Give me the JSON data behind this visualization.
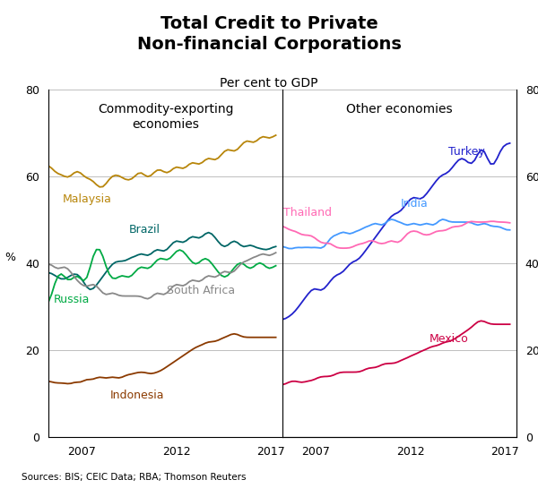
{
  "title_line1": "Total Credit to Private",
  "title_line2": "Non-financial Corporations",
  "subtitle": "Per cent to GDP",
  "left_panel_title": "Commodity-exporting\neconomies",
  "right_panel_title": "Other economies",
  "source": "Sources: BIS; CEIC Data; RBA; Thomson Reuters",
  "ylim": [
    0,
    80
  ],
  "yticks": [
    0,
    20,
    40,
    60,
    80
  ],
  "year_start": 2005.0,
  "year_end": 2017.5,
  "xticks_left": [
    2007,
    2012,
    2017
  ],
  "xticks_right": [
    2007,
    2012,
    2017
  ],
  "malaysia_color": "#B8860B",
  "brazil_color": "#006666",
  "russia_color": "#00AA44",
  "south_africa_color": "#888888",
  "indonesia_color": "#8B3A00",
  "turkey_color": "#2222CC",
  "india_color": "#4499FF",
  "thailand_color": "#FF69B4",
  "mexico_color": "#CC0044",
  "malaysia": [
    63,
    62,
    61,
    60,
    61,
    60,
    59,
    60,
    61,
    62,
    61,
    60,
    59,
    60,
    59,
    58,
    57,
    57,
    58,
    60,
    60,
    61,
    60,
    60,
    59,
    59,
    59,
    60,
    61,
    62,
    60,
    59,
    60,
    61,
    62,
    62,
    61,
    60,
    61,
    62,
    63,
    62,
    61,
    62,
    63,
    64,
    63,
    62,
    63,
    64,
    65,
    64,
    63,
    64,
    65,
    66,
    67,
    66,
    65,
    66,
    67,
    68,
    69,
    68,
    67,
    68,
    69,
    70,
    69,
    68,
    69,
    70
  ],
  "brazil": [
    38,
    38,
    37,
    37,
    36,
    36,
    37,
    37,
    38,
    38,
    37,
    36,
    34,
    33,
    34,
    35,
    36,
    37,
    38,
    39,
    40,
    41,
    40,
    41,
    40,
    41,
    42,
    41,
    42,
    43,
    42,
    41,
    42,
    43,
    44,
    43,
    42,
    43,
    44,
    45,
    46,
    45,
    44,
    45,
    46,
    47,
    46,
    45,
    46,
    47,
    48,
    47,
    46,
    45,
    44,
    43,
    44,
    45,
    46,
    45,
    44,
    43,
    44,
    45,
    44,
    43,
    44,
    43,
    43,
    43,
    44,
    44
  ],
  "russia": [
    29,
    33,
    36,
    38,
    39,
    37,
    35,
    36,
    37,
    38,
    37,
    35,
    34,
    40,
    42,
    45,
    44,
    43,
    38,
    37,
    36,
    36,
    37,
    38,
    37,
    36,
    37,
    38,
    39,
    40,
    39,
    38,
    39,
    40,
    41,
    42,
    41,
    40,
    41,
    42,
    43,
    44,
    43,
    42,
    41,
    40,
    39,
    40,
    41,
    42,
    41,
    40,
    39,
    38,
    37,
    36,
    37,
    38,
    39,
    40,
    41,
    40,
    39,
    38,
    39,
    40,
    41,
    40,
    39,
    38,
    39,
    40
  ],
  "south_africa": [
    40,
    40,
    39,
    38,
    39,
    40,
    39,
    38,
    37,
    36,
    35,
    35,
    34,
    35,
    36,
    35,
    34,
    33,
    32,
    33,
    34,
    33,
    32,
    33,
    32,
    33,
    32,
    33,
    32,
    33,
    32,
    31,
    32,
    33,
    34,
    33,
    32,
    33,
    34,
    35,
    36,
    35,
    34,
    35,
    36,
    37,
    36,
    35,
    36,
    37,
    38,
    37,
    36,
    37,
    38,
    39,
    38,
    37,
    38,
    39,
    40,
    41,
    40,
    41,
    42,
    41,
    42,
    43,
    42,
    41,
    42,
    43
  ],
  "indonesia": [
    13,
    13,
    12,
    13,
    12,
    13,
    12,
    12,
    13,
    13,
    12,
    13,
    14,
    13,
    13,
    14,
    14,
    14,
    13,
    14,
    14,
    14,
    13,
    14,
    14,
    15,
    14,
    15,
    15,
    15,
    15,
    15,
    14,
    15,
    15,
    15,
    16,
    16,
    17,
    17,
    18,
    18,
    19,
    19,
    20,
    20,
    21,
    21,
    21,
    22,
    22,
    22,
    22,
    22,
    23,
    23,
    23,
    24,
    24,
    24,
    23,
    23,
    23,
    23,
    23,
    23,
    23,
    23,
    23,
    23,
    23,
    23
  ],
  "turkey": [
    27,
    27,
    28,
    28,
    29,
    30,
    31,
    32,
    33,
    34,
    35,
    34,
    33,
    34,
    35,
    36,
    37,
    38,
    37,
    38,
    39,
    40,
    41,
    40,
    41,
    42,
    43,
    44,
    45,
    46,
    47,
    48,
    49,
    50,
    51,
    52,
    51,
    52,
    53,
    54,
    55,
    56,
    55,
    54,
    55,
    56,
    57,
    58,
    59,
    60,
    61,
    60,
    61,
    62,
    63,
    64,
    65,
    64,
    63,
    62,
    63,
    65,
    68,
    67,
    64,
    61,
    62,
    64,
    66,
    68,
    67,
    68
  ],
  "india": [
    44,
    44,
    43,
    43,
    44,
    44,
    43,
    44,
    44,
    43,
    44,
    44,
    43,
    43,
    45,
    46,
    47,
    46,
    47,
    48,
    47,
    46,
    47,
    48,
    47,
    48,
    49,
    48,
    49,
    50,
    49,
    48,
    49,
    50,
    51,
    50,
    49,
    50,
    49,
    48,
    49,
    50,
    49,
    48,
    49,
    50,
    49,
    48,
    49,
    50,
    51,
    50,
    49,
    50,
    49,
    50,
    49,
    50,
    49,
    50,
    49,
    48,
    49,
    50,
    49,
    48,
    49,
    48,
    49,
    48,
    47,
    48
  ],
  "thailand": [
    49,
    48,
    48,
    47,
    48,
    47,
    46,
    47,
    46,
    47,
    46,
    45,
    45,
    44,
    45,
    45,
    44,
    43,
    44,
    43,
    44,
    43,
    44,
    44,
    45,
    44,
    45,
    45,
    46,
    45,
    44,
    45,
    44,
    45,
    46,
    45,
    44,
    45,
    46,
    47,
    48,
    47,
    48,
    47,
    46,
    47,
    46,
    47,
    48,
    47,
    48,
    47,
    48,
    49,
    48,
    49,
    48,
    49,
    50,
    50,
    49,
    50,
    49,
    50,
    49,
    50,
    50,
    49,
    50,
    49,
    50,
    49
  ],
  "mexico": [
    12,
    12,
    13,
    13,
    13,
    13,
    12,
    13,
    13,
    13,
    13,
    14,
    14,
    14,
    14,
    14,
    14,
    15,
    15,
    15,
    15,
    15,
    15,
    15,
    15,
    15,
    16,
    16,
    16,
    16,
    16,
    17,
    17,
    17,
    17,
    17,
    17,
    18,
    18,
    18,
    19,
    19,
    19,
    20,
    20,
    20,
    21,
    21,
    21,
    21,
    22,
    22,
    22,
    22,
    23,
    23,
    24,
    24,
    25,
    25,
    26,
    27,
    27,
    27,
    26,
    26,
    26,
    26,
    26,
    26,
    26,
    26
  ]
}
